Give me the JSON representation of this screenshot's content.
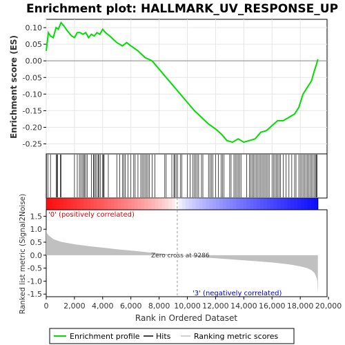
{
  "chart_data": {
    "type": "line",
    "title": "Enrichment plot: HALLMARK_UV_RESPONSE_UP",
    "es_panel": {
      "ylabel": "Enrichment score (ES)",
      "ylim": [
        -0.28,
        0.125
      ],
      "yticks": [
        0.1,
        0.05,
        0.0,
        -0.05,
        -0.1,
        -0.15,
        -0.2,
        -0.25
      ],
      "ytick_labels": [
        "0.10",
        "0.05",
        "0.00",
        "-0.05",
        "-0.10",
        "-0.15",
        "-0.20",
        "-0.25"
      ],
      "line_color": "#00dd00",
      "x": [
        0,
        150,
        300,
        500,
        700,
        850,
        1050,
        1250,
        1500,
        1800,
        2000,
        2200,
        2400,
        2600,
        2800,
        3000,
        3200,
        3400,
        3600,
        3800,
        4000,
        4200,
        4500,
        5000,
        5400,
        5700,
        6000,
        6500,
        7000,
        7500,
        8000,
        8500,
        9000,
        9500,
        10000,
        10500,
        11000,
        11500,
        12000,
        12400,
        12800,
        13200,
        13600,
        14000,
        14400,
        14800,
        15200,
        15600,
        16000,
        16400,
        16800,
        17200,
        17600,
        17900,
        18200,
        18500,
        18800,
        19000,
        19150,
        19250
      ],
      "y": [
        0.03,
        0.085,
        0.075,
        0.07,
        0.1,
        0.095,
        0.115,
        0.105,
        0.09,
        0.075,
        0.07,
        0.085,
        0.085,
        0.08,
        0.085,
        0.07,
        0.08,
        0.075,
        0.085,
        0.08,
        0.095,
        0.085,
        0.075,
        0.055,
        0.045,
        0.055,
        0.045,
        0.03,
        0.01,
        0.0,
        -0.025,
        -0.05,
        -0.075,
        -0.1,
        -0.125,
        -0.15,
        -0.17,
        -0.19,
        -0.205,
        -0.22,
        -0.24,
        -0.245,
        -0.235,
        -0.245,
        -0.24,
        -0.235,
        -0.215,
        -0.21,
        -0.195,
        -0.18,
        -0.18,
        -0.17,
        -0.16,
        -0.14,
        -0.1,
        -0.08,
        -0.06,
        -0.03,
        -0.01,
        0.005
      ]
    },
    "hits": [
      20,
      120,
      300,
      700,
      750,
      800,
      1000,
      1050,
      2000,
      2200,
      2350,
      2450,
      2550,
      2650,
      2700,
      2800,
      2900,
      3200,
      3350,
      3400,
      3500,
      3600,
      3700,
      3750,
      3850,
      4000,
      4050,
      4100,
      4400,
      5000,
      5200,
      5400,
      5500,
      5600,
      5800,
      6000,
      6200,
      6300,
      6500,
      6700,
      6800,
      6900,
      7000,
      7100,
      7200,
      7300,
      7500,
      7700,
      8400,
      8500,
      8900,
      9050,
      9100,
      9200,
      9300,
      9500,
      9600,
      10000,
      10200,
      10400,
      10500,
      10600,
      10700,
      10800,
      11000,
      11100,
      11500,
      11600,
      11700,
      11800,
      12000,
      12200,
      12400,
      12500,
      12600,
      13000,
      13100,
      13300,
      13400,
      13500,
      13600,
      13700,
      13800,
      14200,
      14400,
      14500,
      14600,
      14700,
      14800,
      14900,
      15000,
      15100,
      15200,
      15300,
      15400,
      15500,
      15600,
      15700,
      15800,
      16000,
      16100,
      16200,
      16300,
      16400,
      16500,
      16600,
      16800,
      17000,
      17200,
      17400,
      17600,
      17700,
      17900,
      18000,
      18100,
      18200,
      18300,
      18400,
      18500,
      18600,
      18700,
      18800,
      18900,
      19000,
      19100,
      19150,
      19200
    ],
    "rank_panel": {
      "ylabel": "Ranked list metric (Signal2Noise)",
      "ylim": [
        -1.6,
        1.75
      ],
      "yticks": [
        1.5,
        1.0,
        0.5,
        0.0,
        -0.5,
        -1.0,
        -1.5
      ],
      "ytick_labels": [
        "1.5",
        "1.0",
        "0.5",
        "0.0",
        "-0.5",
        "-1.0",
        "-1.5"
      ],
      "fill_color": "#c0c0c0",
      "x": [
        0,
        50,
        200,
        500,
        1000,
        2000,
        3000,
        4000,
        5000,
        6000,
        7000,
        8000,
        9000,
        9286,
        10000,
        11000,
        12000,
        13000,
        14000,
        15000,
        16000,
        17000,
        17500,
        18000,
        18500,
        18800,
        19000,
        19100,
        19200,
        19250
      ],
      "y": [
        1.0,
        0.85,
        0.75,
        0.62,
        0.52,
        0.42,
        0.35,
        0.29,
        0.23,
        0.18,
        0.12,
        0.07,
        0.02,
        0.0,
        -0.03,
        -0.08,
        -0.12,
        -0.16,
        -0.2,
        -0.24,
        -0.28,
        -0.34,
        -0.38,
        -0.43,
        -0.5,
        -0.58,
        -0.68,
        -0.78,
        -0.95,
        -1.5
      ]
    },
    "xlabel": "Rank in Ordered Dataset",
    "xlim": [
      0,
      19900
    ],
    "xticks": [
      0,
      2000,
      4000,
      6000,
      8000,
      10000,
      12000,
      14000,
      16000,
      18000,
      20000
    ],
    "xtick_labels": [
      "0",
      "2,000",
      "4,000",
      "6,000",
      "8,000",
      "10,000",
      "12,000",
      "14,000",
      "16,000",
      "18,000",
      "20,000"
    ],
    "dataset_size": 19250,
    "zero_cross": 9286,
    "annotations": {
      "pos_label": "'0' (positively correlated)",
      "neg_label": "'3' (negatively correlated)",
      "zero_cross_label": "Zero cross at 9286"
    },
    "legend": {
      "placement": "bottom",
      "items": [
        "Enrichment profile",
        "Hits",
        "Ranking metric scores"
      ]
    },
    "colors": {
      "es_line": "#00dd00",
      "hits": "#000000",
      "rank_fill": "#c0c0c0",
      "pos_label": "#dd0000",
      "neg_label": "#0000cc",
      "pos_band": "#ff0000",
      "neg_band": "#0000ff"
    }
  }
}
